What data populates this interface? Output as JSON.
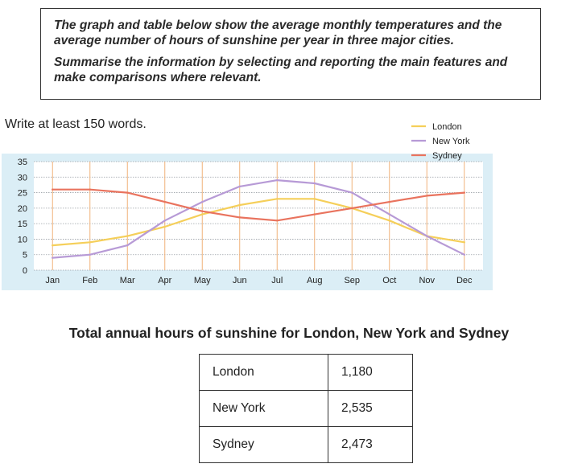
{
  "task": {
    "line1": "The graph and table below show the average monthly temperatures and the average number of hours of sunshine per year in three major cities.",
    "line2": "Summarise the information by selecting and reporting the main features and make comparisons where relevant."
  },
  "instruction": "Write at least 150 words.",
  "chart_data": {
    "type": "line",
    "categories": [
      "Jan",
      "Feb",
      "Mar",
      "Apr",
      "May",
      "Jun",
      "Jul",
      "Aug",
      "Sep",
      "Oct",
      "Nov",
      "Dec"
    ],
    "ylim": [
      0,
      35
    ],
    "yticks": [
      0,
      5,
      10,
      15,
      20,
      25,
      30,
      35
    ],
    "grid": true,
    "legend_position": "top-right",
    "series": [
      {
        "name": "London",
        "color": "#f5cf5a",
        "values": [
          8,
          9,
          11,
          14,
          18,
          21,
          23,
          23,
          20,
          16,
          11,
          9
        ]
      },
      {
        "name": "New York",
        "color": "#b79ad6",
        "values": [
          4,
          5,
          8,
          16,
          22,
          27,
          29,
          28,
          25,
          18,
          11,
          5
        ]
      },
      {
        "name": "Sydney",
        "color": "#e9735e",
        "values": [
          26,
          26,
          25,
          22,
          19,
          17,
          16,
          18,
          20,
          22,
          24,
          25
        ]
      }
    ]
  },
  "table": {
    "title": "Total annual hours of sunshine for London, New York and Sydney",
    "rows": [
      {
        "city": "London",
        "hours": "1,180"
      },
      {
        "city": "New York",
        "hours": "2,535"
      },
      {
        "city": "Sydney",
        "hours": "2,473"
      }
    ]
  }
}
